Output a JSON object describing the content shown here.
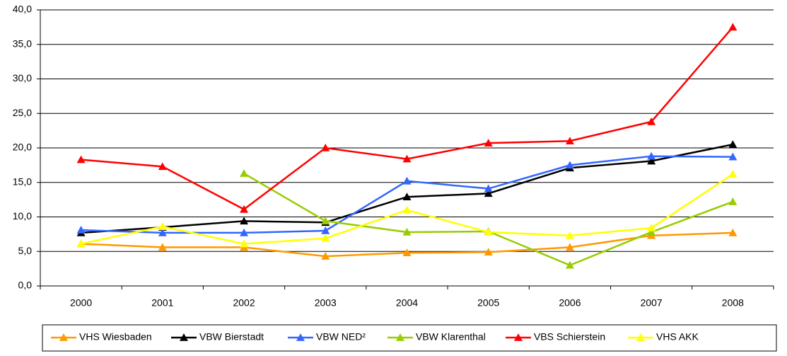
{
  "chart_data": {
    "type": "line",
    "categories": [
      "2000",
      "2001",
      "2002",
      "2003",
      "2004",
      "2005",
      "2006",
      "2007",
      "2008"
    ],
    "series": [
      {
        "name": "VHS Wiesbaden",
        "color": "#ff9900",
        "values": [
          6.1,
          5.6,
          5.6,
          4.3,
          4.8,
          4.9,
          5.6,
          7.3,
          7.7
        ]
      },
      {
        "name": "VBW Bierstadt",
        "color": "#000000",
        "values": [
          7.7,
          8.5,
          9.4,
          9.2,
          12.9,
          13.4,
          17.1,
          18.1,
          20.5
        ]
      },
      {
        "name": "VBW NED²",
        "color": "#3366ff",
        "values": [
          8.1,
          7.7,
          7.7,
          8.0,
          15.2,
          14.1,
          17.5,
          18.8,
          18.7
        ]
      },
      {
        "name": "VBW Klarenthal",
        "color": "#99cc00",
        "values": [
          null,
          null,
          16.3,
          9.4,
          7.8,
          7.9,
          3.0,
          7.8,
          12.2
        ]
      },
      {
        "name": "VBS Schierstein",
        "color": "#ff0000",
        "values": [
          18.3,
          17.3,
          11.1,
          20.0,
          18.4,
          20.7,
          21.0,
          23.8,
          37.5
        ]
      },
      {
        "name": "VHS AKK",
        "color": "#ffff00",
        "values": [
          6.1,
          8.6,
          6.1,
          6.9,
          11.0,
          7.8,
          7.3,
          8.4,
          16.2
        ]
      }
    ],
    "ylim": [
      0,
      40
    ],
    "yticks": [
      {
        "value": 0,
        "label": "0,0"
      },
      {
        "value": 5,
        "label": "5,0"
      },
      {
        "value": 10,
        "label": "10,0"
      },
      {
        "value": 15,
        "label": "15,0"
      },
      {
        "value": 20,
        "label": "20,0"
      },
      {
        "value": 25,
        "label": "25,0"
      },
      {
        "value": 30,
        "label": "30,0"
      },
      {
        "value": 35,
        "label": "35,0"
      },
      {
        "value": 40,
        "label": "40,0"
      }
    ],
    "grid": true
  }
}
